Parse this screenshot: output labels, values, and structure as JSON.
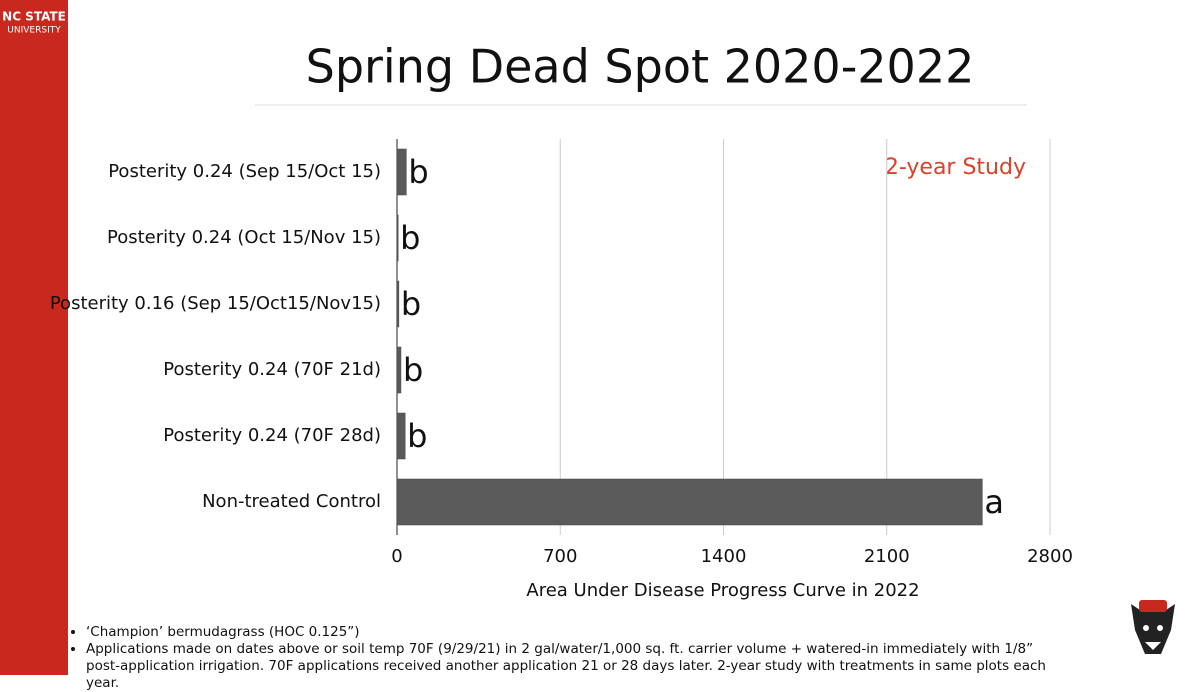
{
  "brand": {
    "line1": "NC STATE",
    "line2": "UNIVERSITY"
  },
  "chart_data": {
    "type": "bar",
    "orientation": "horizontal",
    "title": "Spring Dead Spot 2020-2022",
    "annotation": "2-year Study",
    "x_label": "Area Under Disease Progress Curve in 2022",
    "categories": [
      "Posterity 0.24 (Sep 15/Oct 15)",
      "Posterity 0.24 (Oct 15/Nov 15)",
      "Posterity 0.16 (Sep 15/Oct15/Nov15)",
      "Posterity 0.24 (70F 21d)",
      "Posterity 0.24 (70F 28d)",
      "Non-treated Control"
    ],
    "values": [
      40,
      5,
      8,
      17,
      35,
      2510
    ],
    "letters": [
      "b",
      "b",
      "b",
      "b",
      "b",
      "a"
    ],
    "color": "#5a5a5a",
    "xlim": [
      0,
      2800
    ],
    "xticks": [
      0,
      700,
      1400,
      2100,
      2800
    ],
    "grid": true
  },
  "notes": [
    "‘Champion’ bermudagrass (HOC 0.125”)",
    "Applications made on dates above or soil temp 70F (9/29/21) in 2 gal/water/1,000 sq. ft. carrier volume + watered-in immediately with 1/8” post-application irrigation. 70F applications received another application 21 or 28 days later. 2-year study with treatments in same plots each year."
  ]
}
